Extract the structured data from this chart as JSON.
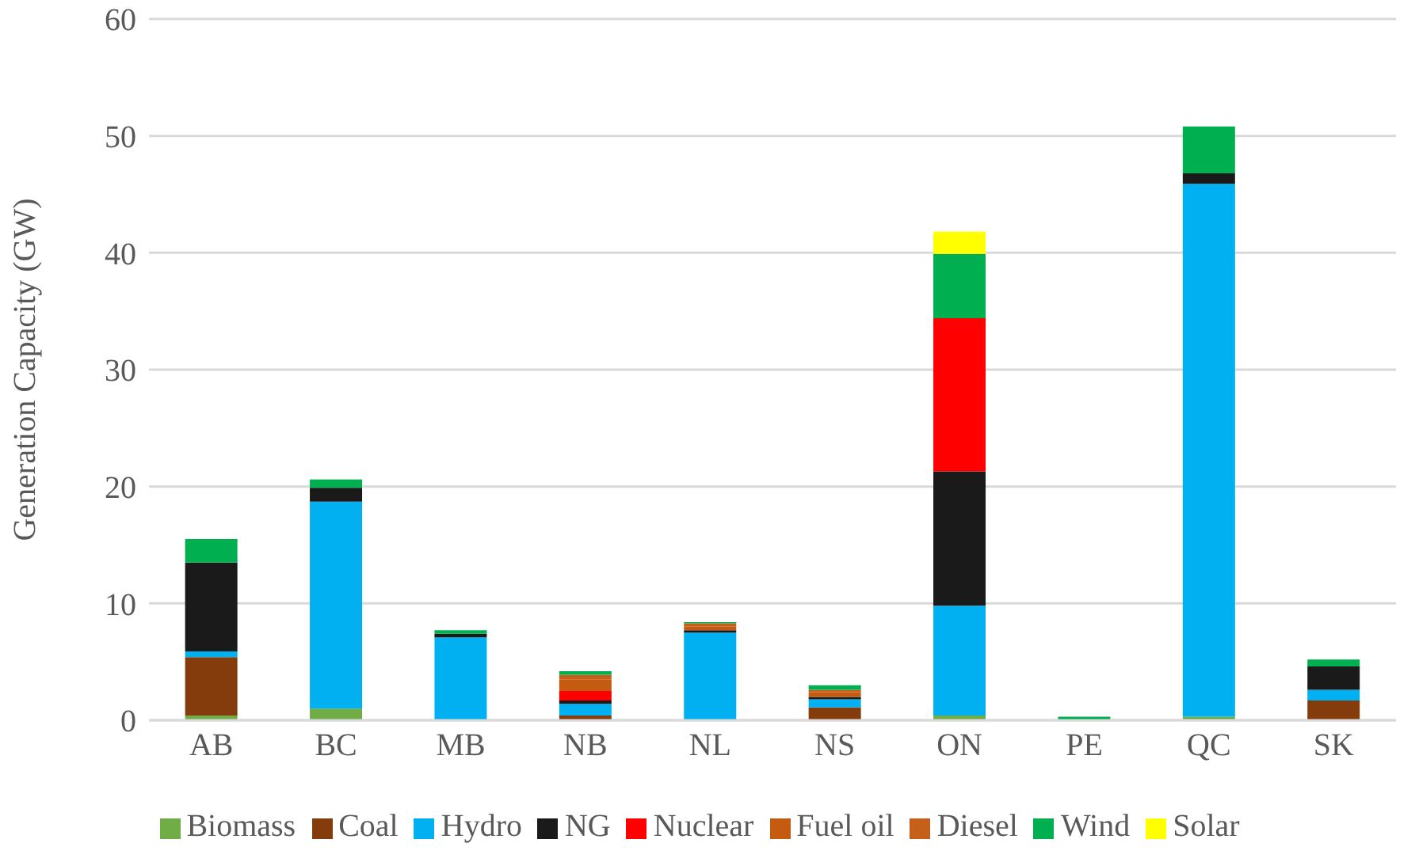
{
  "chart_data": {
    "type": "bar",
    "stacked": true,
    "ylabel": "Generation Capacity (GW)",
    "categories": [
      "AB",
      "BC",
      "MB",
      "NB",
      "NL",
      "NS",
      "ON",
      "PE",
      "QC",
      "SK"
    ],
    "series": [
      {
        "name": "Biomass",
        "color": "#70ad47",
        "values": [
          0.4,
          1.0,
          null,
          null,
          null,
          null,
          0.4,
          null,
          0.3,
          null
        ]
      },
      {
        "name": "Coal",
        "color": "#843c0c",
        "values": [
          5.0,
          null,
          null,
          0.4,
          null,
          1.1,
          null,
          null,
          null,
          1.7
        ]
      },
      {
        "name": "Hydro",
        "color": "#00b0f0",
        "values": [
          0.5,
          17.7,
          7.1,
          1.0,
          7.5,
          0.7,
          9.4,
          null,
          45.6,
          0.9
        ]
      },
      {
        "name": "NG",
        "color": "#1a1a1a",
        "values": [
          7.6,
          1.2,
          0.3,
          0.3,
          0.2,
          0.2,
          11.5,
          null,
          0.9,
          2.0
        ]
      },
      {
        "name": "Nuclear",
        "color": "#ff0000",
        "values": [
          null,
          null,
          null,
          0.8,
          null,
          null,
          13.1,
          null,
          null,
          null
        ]
      },
      {
        "name": "Fuel oil",
        "color": "#c55a11",
        "values": [
          null,
          null,
          null,
          1.0,
          0.3,
          0.4,
          null,
          null,
          null,
          null
        ]
      },
      {
        "name": "Diesel",
        "color": "#c5601a",
        "values": [
          null,
          null,
          null,
          0.4,
          0.3,
          0.2,
          null,
          null,
          null,
          null
        ]
      },
      {
        "name": "Wind",
        "color": "#00b050",
        "values": [
          2.0,
          0.7,
          0.3,
          0.3,
          0.1,
          0.4,
          5.5,
          0.3,
          4.0,
          0.6
        ]
      },
      {
        "name": "Solar",
        "color": "#ffff00",
        "values": [
          null,
          null,
          null,
          null,
          null,
          null,
          1.9,
          null,
          null,
          null
        ]
      }
    ],
    "ylim": [
      0,
      60
    ],
    "yticks": [
      0,
      10,
      20,
      30,
      40,
      50,
      60
    ],
    "grid": "y",
    "legend": "bottom"
  }
}
